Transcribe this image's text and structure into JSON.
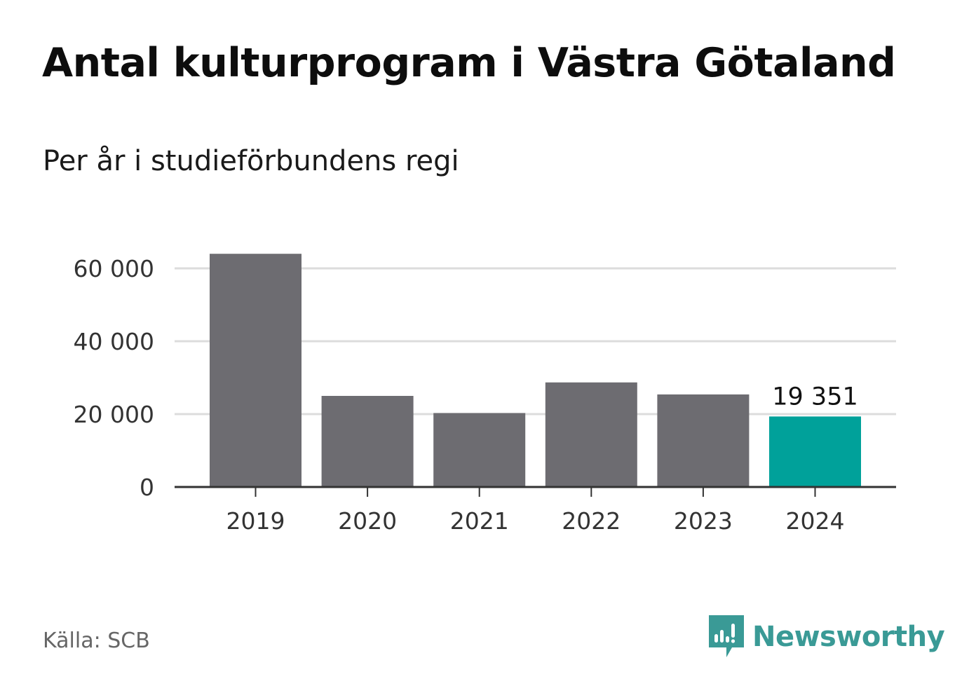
{
  "title": "Antal kulturprogram i Västra Götaland",
  "subtitle": "Per år i studieförbundens regi",
  "source": "Källa: SCB",
  "brand": {
    "name": "Newsworthy",
    "color": "#3a9a96",
    "icon": "newsworthy-chart-bubble-icon"
  },
  "colors": {
    "bar_default": "#6d6c71",
    "bar_highlight": "#00a19a",
    "grid": "#dcdcdc",
    "axis": "#333333"
  },
  "chart_data": {
    "type": "bar",
    "categories": [
      "2019",
      "2020",
      "2021",
      "2022",
      "2023",
      "2024"
    ],
    "values": [
      64000,
      25000,
      20300,
      28700,
      25400,
      19351
    ],
    "highlight_index": 5,
    "data_labels": [
      {
        "index": 5,
        "text": "19 351"
      }
    ],
    "ylim": [
      0,
      70000
    ],
    "yticks": [
      0,
      20000,
      40000,
      60000
    ],
    "ytick_labels": [
      "0",
      "20 000",
      "40 000",
      "60 000"
    ],
    "grid": true,
    "xlabel": "",
    "ylabel": ""
  }
}
